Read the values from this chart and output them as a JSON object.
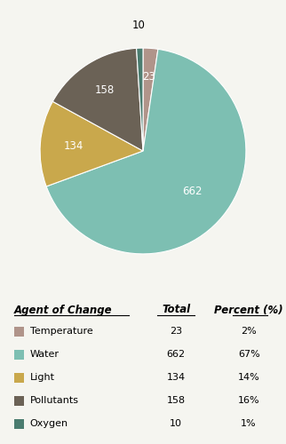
{
  "labels": [
    "Temperature",
    "Water",
    "Light",
    "Pollutants",
    "Oxygen"
  ],
  "values": [
    23,
    662,
    134,
    158,
    10
  ],
  "totals": [
    23,
    662,
    134,
    158,
    10
  ],
  "percents": [
    "2%",
    "67%",
    "14%",
    "16%",
    "1%"
  ],
  "colors": [
    "#b0948a",
    "#7dbfb2",
    "#c9a84c",
    "#6b6256",
    "#4a7c6f"
  ],
  "startangle": 90,
  "legend_title": "Agent of Change",
  "legend_col1": "Total",
  "legend_col2": "Percent (%)",
  "background_color": "#f5f5f0"
}
